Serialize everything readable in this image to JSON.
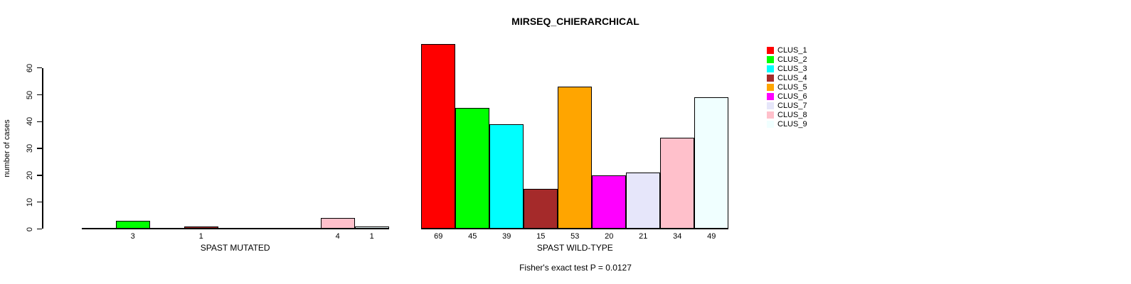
{
  "chart_data": {
    "type": "bar",
    "title": "MIRSEQ_CHIERARCHICAL",
    "ylabel": "number of cases",
    "yticks": [
      0,
      10,
      20,
      30,
      40,
      50,
      60
    ],
    "ylim": [
      0,
      60
    ],
    "grid": false,
    "legend_position": "right",
    "clusters": [
      {
        "name": "CLUS_1",
        "color": "#FF0000"
      },
      {
        "name": "CLUS_2",
        "color": "#00FF00"
      },
      {
        "name": "CLUS_3",
        "color": "#00FFFF"
      },
      {
        "name": "CLUS_4",
        "color": "#A52A2A"
      },
      {
        "name": "CLUS_5",
        "color": "#FFA500"
      },
      {
        "name": "CLUS_6",
        "color": "#FF00FF"
      },
      {
        "name": "CLUS_7",
        "color": "#E6E6FA"
      },
      {
        "name": "CLUS_8",
        "color": "#FFC0CB"
      },
      {
        "name": "CLUS_9",
        "color": "#F0FFFF"
      }
    ],
    "groups": [
      {
        "label": "SPAST MUTATED",
        "values": [
          0,
          3,
          0,
          1,
          0,
          0,
          0,
          4,
          1
        ]
      },
      {
        "label": "SPAST WILD-TYPE",
        "values": [
          69,
          45,
          39,
          15,
          53,
          20,
          21,
          34,
          49
        ]
      }
    ],
    "footer": "Fisher's exact test P = 0.0127"
  }
}
